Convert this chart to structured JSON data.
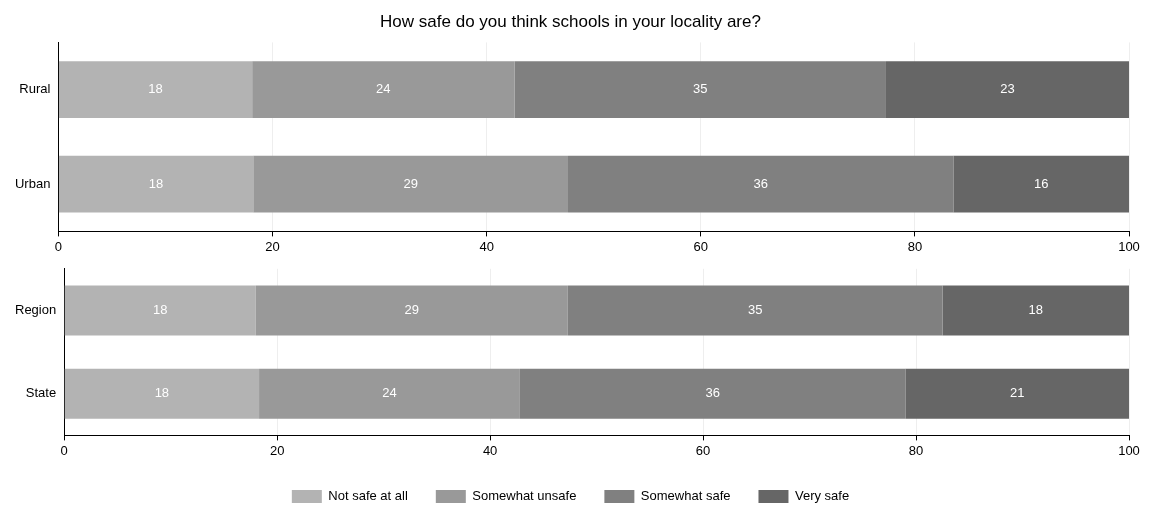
{
  "chart_data": [
    {
      "type": "bar",
      "title": "How safe do you think schools in your locality are?",
      "orientation": "horizontal",
      "stacked": true,
      "categories": [
        "Rural",
        "Urban"
      ],
      "xlim": [
        0,
        100
      ],
      "xticks": [
        0,
        20,
        40,
        60,
        80,
        100
      ],
      "grid": "x",
      "legend": false,
      "series": [
        {
          "color": "#b3b3b3",
          "values": [
            18.1,
            18.2
          ],
          "value_labels": [
            "18",
            "18"
          ]
        },
        {
          "color": "#999999",
          "values": [
            24.5,
            29.4
          ],
          "value_labels": [
            "24",
            "29"
          ]
        },
        {
          "color": "#808080",
          "values": [
            34.7,
            36
          ],
          "value_labels": [
            "35",
            "36"
          ]
        },
        {
          "color": "#666666",
          "values": [
            22.7,
            16.4
          ],
          "value_labels": [
            "23",
            "16"
          ]
        }
      ]
    },
    {
      "type": "bar",
      "orientation": "horizontal",
      "stacked": true,
      "categories": [
        "Region",
        "State"
      ],
      "xlim": [
        0,
        100
      ],
      "xticks": [
        0,
        20,
        40,
        60,
        80,
        100
      ],
      "grid": "x",
      "legend": "bottom",
      "series": [
        {
          "name": "Not safe at all",
          "color": "#b3b3b3",
          "values": [
            18,
            18.3
          ],
          "value_labels": [
            "18",
            "18"
          ]
        },
        {
          "name": "Somewhat unsafe",
          "color": "#999999",
          "values": [
            29.3,
            24.5
          ],
          "value_labels": [
            "29",
            "24"
          ]
        },
        {
          "name": "Somewhat safe",
          "color": "#808080",
          "values": [
            35.2,
            36.2
          ],
          "value_labels": [
            "35",
            "36"
          ]
        },
        {
          "name": "Very safe",
          "color": "#666666",
          "values": [
            17.5,
            21
          ],
          "value_labels": [
            "18",
            "21"
          ]
        }
      ]
    }
  ]
}
